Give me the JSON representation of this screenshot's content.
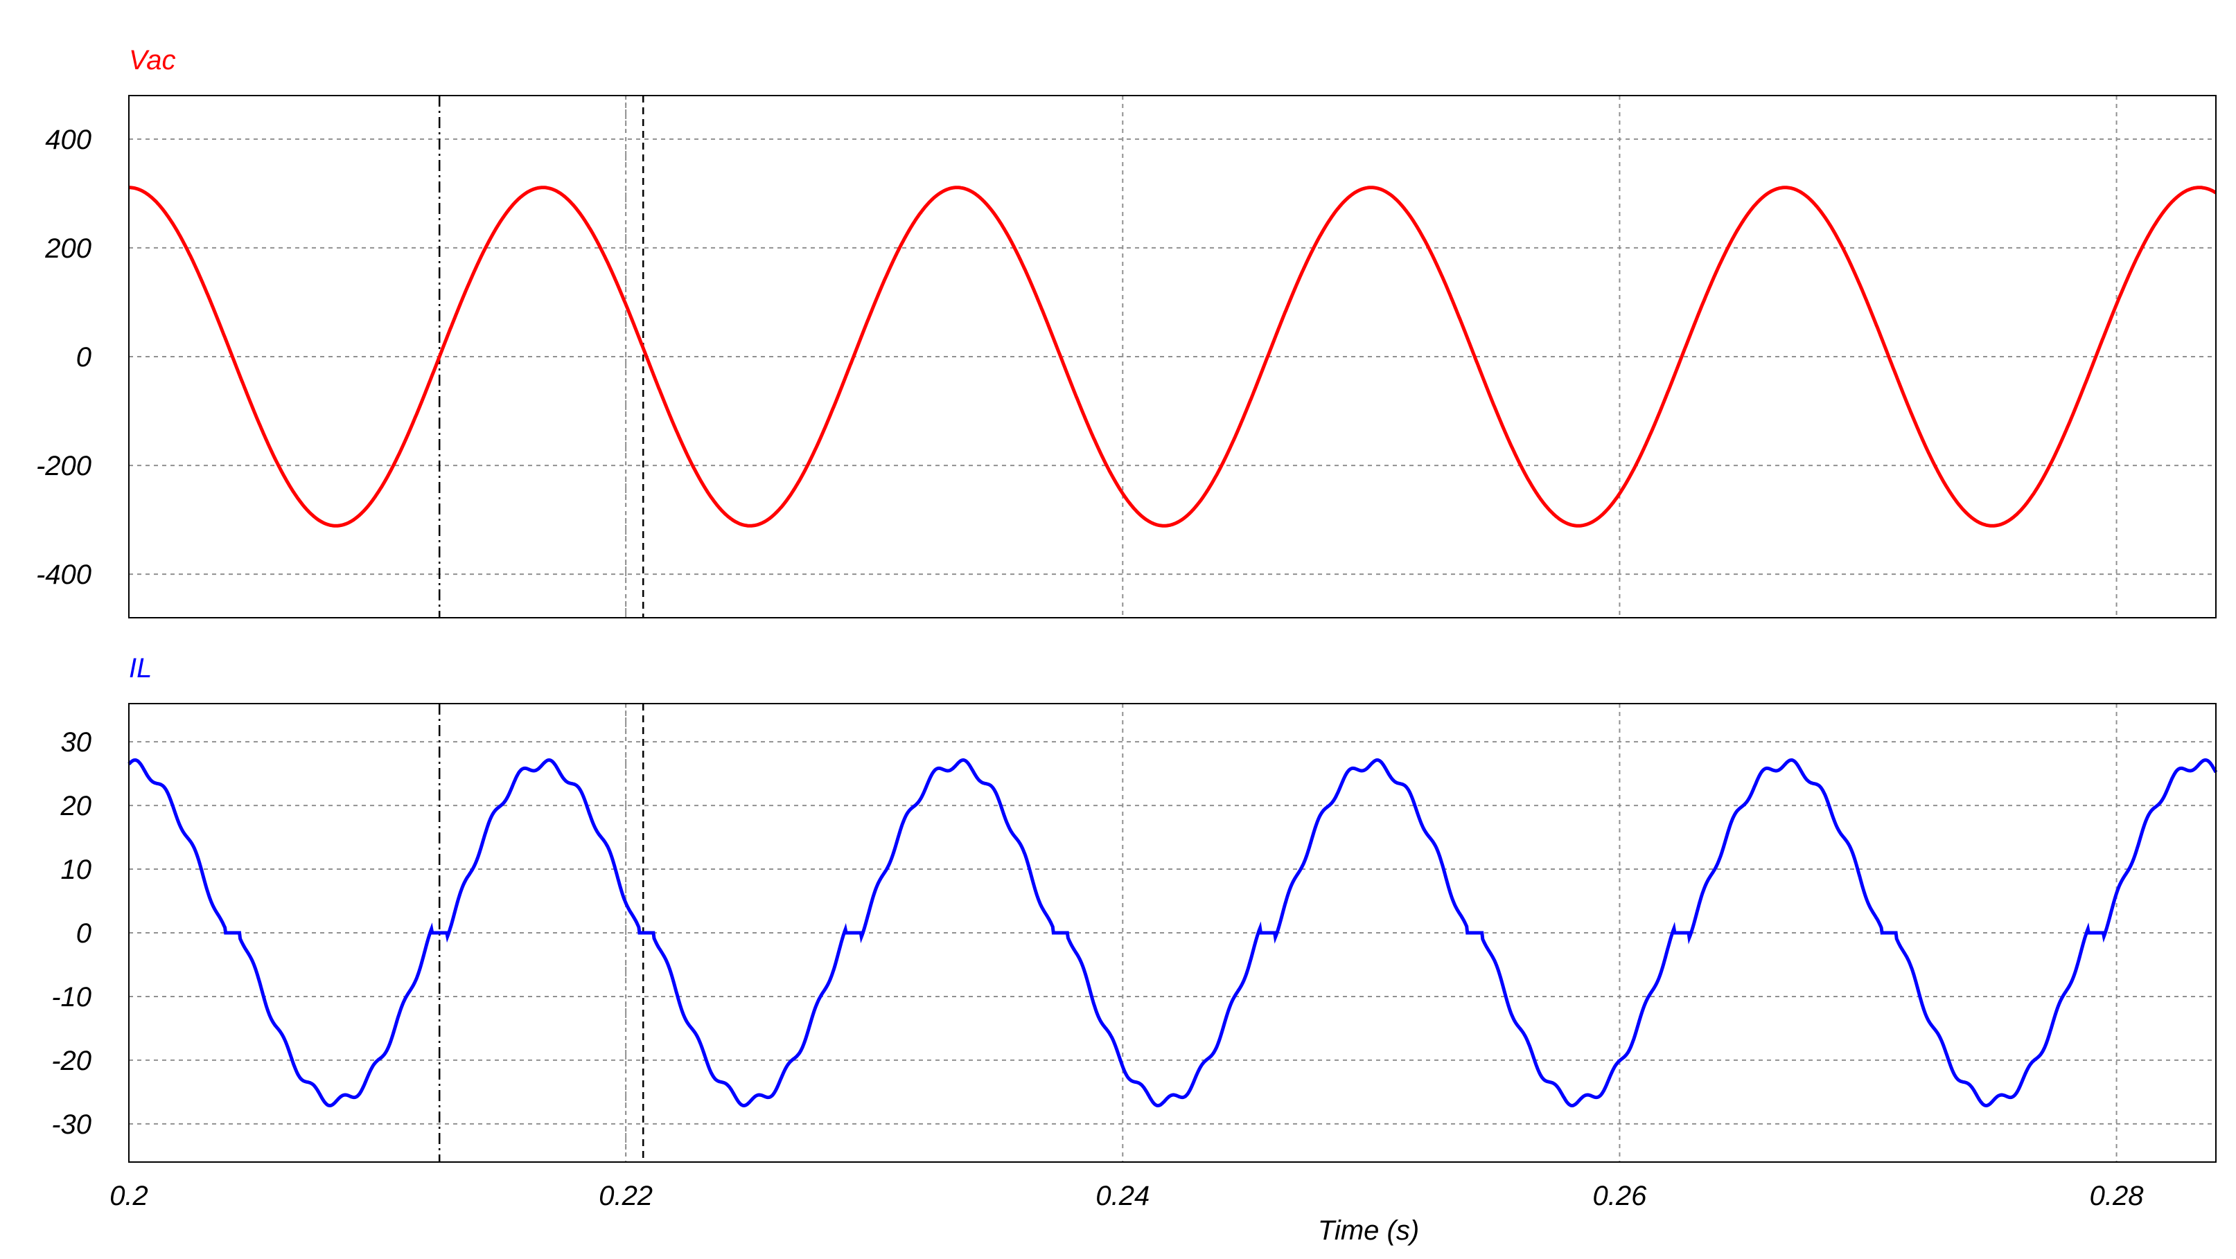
{
  "chart_data": [
    {
      "type": "line",
      "series": [
        {
          "name": "Vac",
          "color": "#ff0000",
          "amplitude": 311,
          "frequency_hz": 60,
          "phase_deg": 90
        }
      ],
      "xlim": [
        0.2,
        0.284
      ],
      "ylim": [
        -480,
        480
      ],
      "yticks": [
        400,
        200,
        0,
        -200,
        -400
      ],
      "xgrid": [
        0.2,
        0.22,
        0.24,
        0.26,
        0.28
      ],
      "grid": true
    },
    {
      "type": "line",
      "series": [
        {
          "name": "IL",
          "color": "#0000ff",
          "amplitude": 26.5,
          "frequency_hz": 60,
          "phase_deg": 90,
          "zero_dead_band": 0.45
        }
      ],
      "xlim": [
        0.2,
        0.284
      ],
      "ylim": [
        -36,
        36
      ],
      "yticks": [
        30,
        20,
        10,
        0,
        -10,
        -20,
        -30
      ],
      "xgrid": [
        0.2,
        0.22,
        0.24,
        0.26,
        0.28
      ],
      "grid": true
    }
  ],
  "xaxis": {
    "label": "Time (s)",
    "ticks": [
      "0.2",
      "0.22",
      "0.24",
      "0.26",
      "0.28"
    ]
  },
  "cursors": [
    0.2125,
    0.2207
  ],
  "cursor_shadow": 0.22,
  "colors": {
    "grid": "#909090",
    "axis": "#000000",
    "cursor": "#000000"
  }
}
